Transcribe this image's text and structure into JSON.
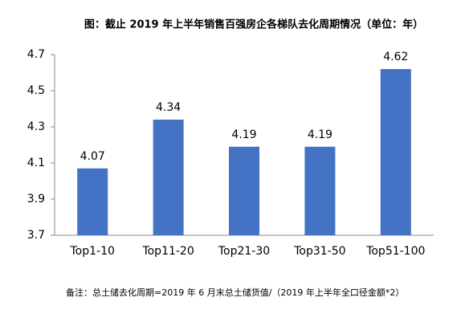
{
  "chart_data": {
    "type": "bar",
    "title": "图：截止 2019 年上半年销售百强房企各梯队去化周期情况（单位：年）",
    "categories": [
      "Top1-10",
      "Top11-20",
      "Top21-30",
      "Top31-50",
      "Top51-100"
    ],
    "values": [
      4.07,
      4.34,
      4.19,
      4.19,
      4.62
    ],
    "color": "#4472c4",
    "ylim": [
      3.7,
      4.7
    ],
    "yticks": [
      3.7,
      3.9,
      4.1,
      4.3,
      4.5,
      4.7
    ],
    "grid": false,
    "note": "备注：总土储去化周期=2019 年 6 月末总土储货值/（2019 年上半年全口径金额*2）"
  }
}
